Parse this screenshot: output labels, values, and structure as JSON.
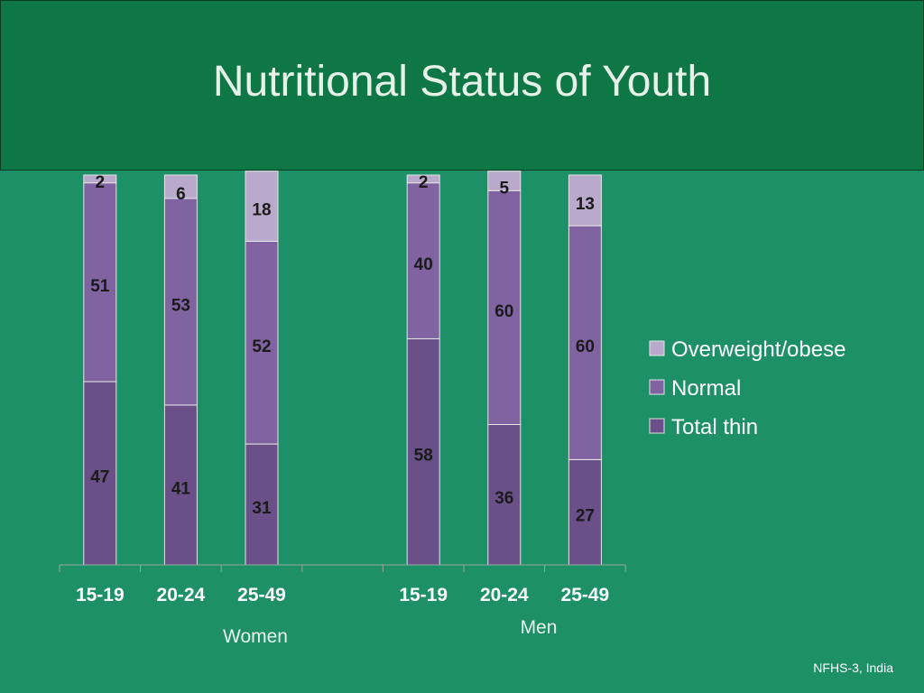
{
  "title": "Nutritional Status of Youth",
  "source": "NFHS-3, India",
  "chart_data": {
    "type": "bar",
    "stacked": true,
    "categories": [
      "15-19",
      "20-24",
      "25-49",
      "",
      "15-19",
      "20-24",
      "25-49"
    ],
    "groups": [
      {
        "label": "Women",
        "categories": [
          "15-19",
          "20-24",
          "25-49"
        ]
      },
      {
        "label": "Men",
        "categories": [
          "15-19",
          "20-24",
          "25-49"
        ]
      }
    ],
    "series": [
      {
        "name": "Total thin",
        "color": "#6a5088",
        "values": [
          47,
          41,
          31,
          null,
          58,
          36,
          27
        ]
      },
      {
        "name": "Normal",
        "color": "#8064a2",
        "values": [
          51,
          53,
          52,
          null,
          40,
          60,
          60
        ]
      },
      {
        "name": "Overweight/obese",
        "color": "#b9aacc",
        "values": [
          2,
          6,
          18,
          null,
          2,
          5,
          13
        ]
      }
    ],
    "legend_order": [
      "Overweight/obese",
      "Normal",
      "Total thin"
    ],
    "legend_position": "right",
    "ylim": [
      0,
      100
    ],
    "grid": false
  }
}
